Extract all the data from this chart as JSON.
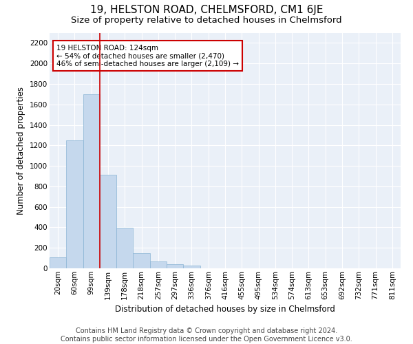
{
  "title": "19, HELSTON ROAD, CHELMSFORD, CM1 6JE",
  "subtitle": "Size of property relative to detached houses in Chelmsford",
  "xlabel": "Distribution of detached houses by size in Chelmsford",
  "ylabel": "Number of detached properties",
  "footer_line1": "Contains HM Land Registry data © Crown copyright and database right 2024.",
  "footer_line2": "Contains public sector information licensed under the Open Government Licence v3.0.",
  "bar_labels": [
    "20sqm",
    "60sqm",
    "99sqm",
    "139sqm",
    "178sqm",
    "218sqm",
    "257sqm",
    "297sqm",
    "336sqm",
    "376sqm",
    "416sqm",
    "455sqm",
    "495sqm",
    "534sqm",
    "574sqm",
    "613sqm",
    "653sqm",
    "692sqm",
    "732sqm",
    "771sqm",
    "811sqm"
  ],
  "bar_values": [
    110,
    1250,
    1700,
    910,
    395,
    150,
    65,
    38,
    25,
    0,
    0,
    0,
    0,
    0,
    0,
    0,
    0,
    0,
    0,
    0,
    0
  ],
  "bar_color": "#c5d8ed",
  "bar_edge_color": "#8ab4d4",
  "vline_x": 2.5,
  "vline_color": "#cc0000",
  "annotation_text": "19 HELSTON ROAD: 124sqm\n← 54% of detached houses are smaller (2,470)\n46% of semi-detached houses are larger (2,109) →",
  "annotation_box_color": "#cc0000",
  "ylim": [
    0,
    2300
  ],
  "yticks": [
    0,
    200,
    400,
    600,
    800,
    1000,
    1200,
    1400,
    1600,
    1800,
    2000,
    2200
  ],
  "bg_color": "#ffffff",
  "plot_bg_color": "#eaf0f8",
  "grid_color": "#ffffff",
  "title_fontsize": 11,
  "subtitle_fontsize": 9.5,
  "axis_label_fontsize": 8.5,
  "tick_fontsize": 7.5,
  "footer_fontsize": 7
}
